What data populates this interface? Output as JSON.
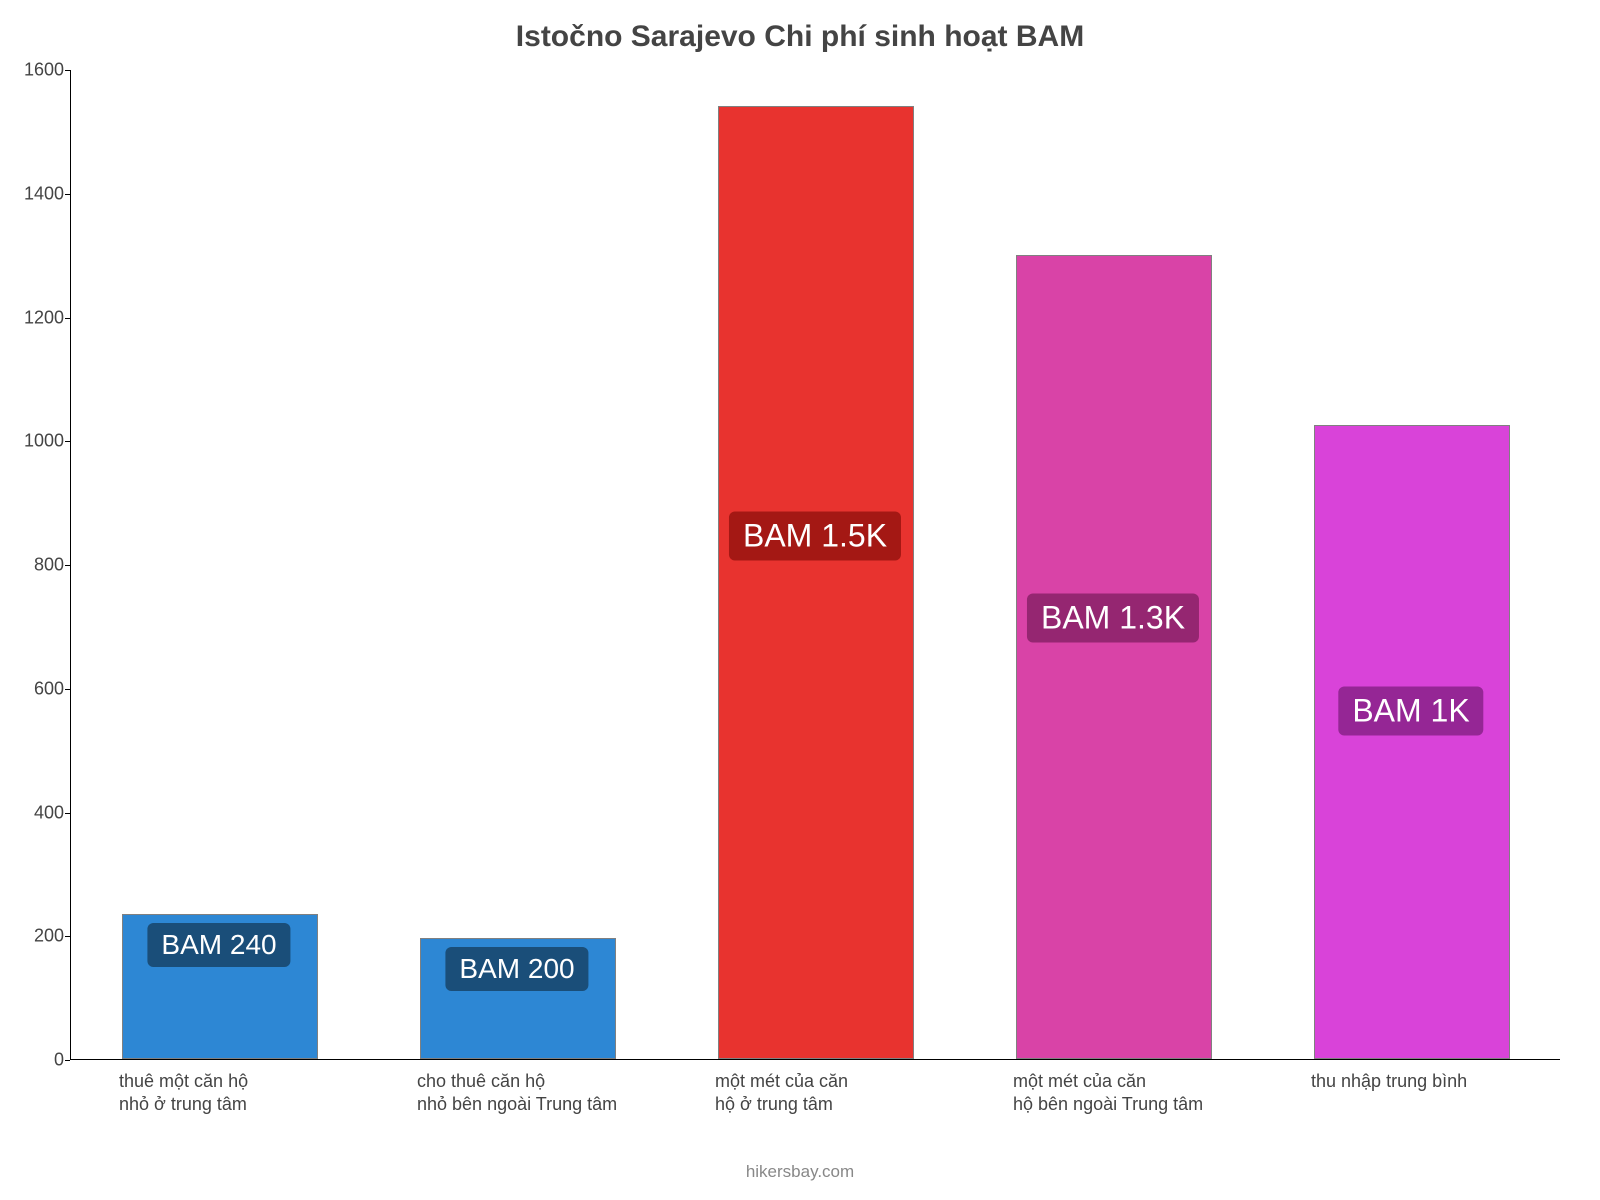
{
  "chart": {
    "type": "bar",
    "title": "Istočno Sarajevo Chi phí sinh hoạt BAM",
    "title_fontsize": 30,
    "title_color": "#444444",
    "background_color": "#ffffff",
    "axis_color": "#000000",
    "border_color": "#808080",
    "label_color": "#444444",
    "label_fontsize": 18,
    "ylim": [
      0,
      1600
    ],
    "ytick_step": 200,
    "yticks": [
      "0",
      "200",
      "400",
      "600",
      "800",
      "1000",
      "1200",
      "1400",
      "1600"
    ],
    "bar_width": 0.66,
    "categories": [
      {
        "label_l1": "thuê một căn hộ",
        "label_l2": "nhỏ ở trung tâm"
      },
      {
        "label_l1": "cho thuê căn hộ",
        "label_l2": "nhỏ bên ngoài Trung tâm"
      },
      {
        "label_l1": "một mét của căn",
        "label_l2": "hộ ở trung tâm"
      },
      {
        "label_l1": "một mét của căn",
        "label_l2": "hộ bên ngoài Trung tâm"
      },
      {
        "label_l1": "thu nhập trung bình",
        "label_l2": ""
      }
    ],
    "bars": [
      {
        "value": 235,
        "color": "#2d87d4",
        "badge_text": "BAM 240",
        "badge_bg": "#1a4e79",
        "badge_fontsize": 28
      },
      {
        "value": 195,
        "color": "#2d87d4",
        "badge_text": "BAM 200",
        "badge_bg": "#1a4e79",
        "badge_fontsize": 28
      },
      {
        "value": 1540,
        "color": "#e8332f",
        "badge_text": "BAM 1.5K",
        "badge_bg": "#a41814",
        "badge_fontsize": 32
      },
      {
        "value": 1300,
        "color": "#d943a7",
        "badge_text": "BAM 1.3K",
        "badge_bg": "#952671",
        "badge_fontsize": 32
      },
      {
        "value": 1025,
        "color": "#d943d9",
        "badge_text": "BAM 1K",
        "badge_bg": "#952695",
        "badge_fontsize": 32
      }
    ],
    "watermark": "hikersbay.com",
    "watermark_color": "#888888"
  }
}
